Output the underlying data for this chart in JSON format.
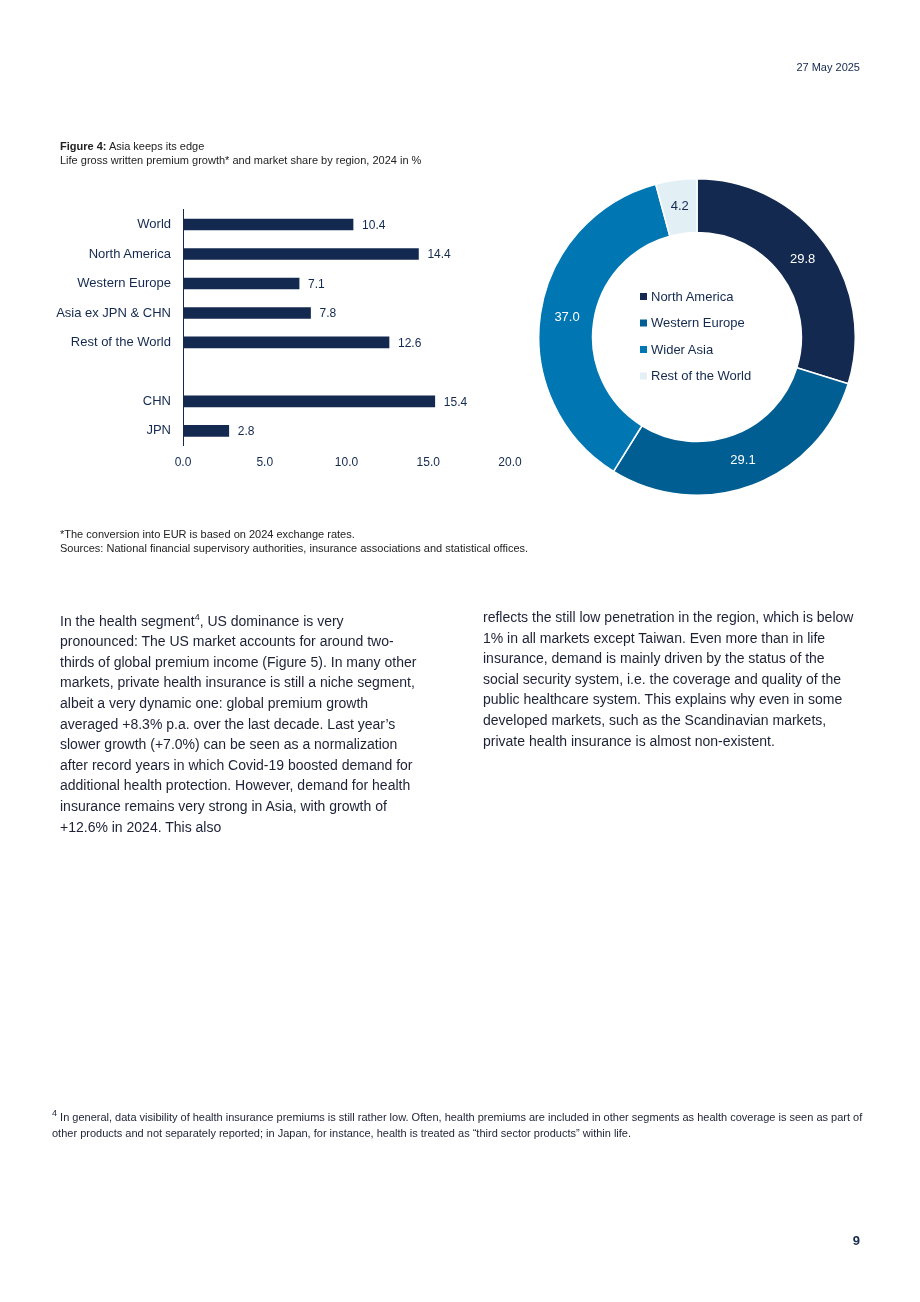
{
  "chart_data": [
    {
      "type": "bar",
      "orientation": "horizontal",
      "title": "Figure 4:",
      "subtitle": "Asia keeps its edge",
      "xlabel": "Life gross written premium growth* and market share by region, 2024 in %",
      "categories": [
        "World",
        "North America",
        "Western Europe",
        "Asia ex JPN & CHN",
        "Rest of the World",
        null,
        "CHN",
        "JPN"
      ],
      "values": [
        10.4,
        14.4,
        7.1,
        7.8,
        12.6,
        null,
        15.4,
        2.8
      ],
      "color": "#13294f",
      "xlim": [
        0,
        20
      ],
      "xticks": [
        {
          "value": 0,
          "label": "0.0"
        },
        {
          "value": 5,
          "label": "5.0"
        },
        {
          "value": 10,
          "label": "10.0"
        },
        {
          "value": 15,
          "label": "15.0"
        },
        {
          "value": 20,
          "label": "20.0"
        }
      ],
      "grid": false,
      "legend": false,
      "data_labels": true,
      "annotations": [
        "*The conversion into EUR is based on 2024 exchange rates.",
        "Sources: National financial supervisory authorities, insurance associations and statistical offices."
      ]
    },
    {
      "type": "donut",
      "categories": [
        "North America",
        "Western Europe",
        "Wider Asia",
        "Rest of the World"
      ],
      "values": [
        29.8,
        29.1,
        37.0,
        4.2
      ],
      "colors": [
        "#13294f",
        "#005e92",
        "#0077b3",
        "#e2eff5"
      ],
      "legend": "center",
      "value_labels": [
        "29.8",
        "29.1",
        "37.0",
        "4.2"
      ]
    },
    {
      "type": "other",
      "annotations": [
        "27 May 2025",
        "In the health segment$^{4}$, US dominance is very pronounced: The US market accounts for around two-thirds of global premium income (Figure 5). In many other markets, private health insurance is still a niche segment, albeit a very dynamic one: global premium growth averaged +8.3% p.a. over the last decade. Last year’s slower growth (+7.0%) can be seen as a normalization after record years in which Covid-19 boosted demand for additional health protection. However, demand for health insurance remains very strong in Asia, with growth of +12.6% in 2024. This also",
        "reflects the still low penetration in the region, which is below 1% in all markets except Taiwan. Even more than in life insurance, demand is mainly driven by the status of the social security system, i.e. the coverage and quality of the public healthcare system. This explains why even in some developed markets, such as the Scandinavian markets, private health insurance is almost non-existent.",
        "$^{4}$  In general, data visibility of health insurance premiums is still rather low. Often, health premiums are included in other segments as health coverage is seen as part of other products and not separately reported; in Japan, for instance, health is treated as “third sector products” within life.",
        "9"
      ]
    }
  ]
}
